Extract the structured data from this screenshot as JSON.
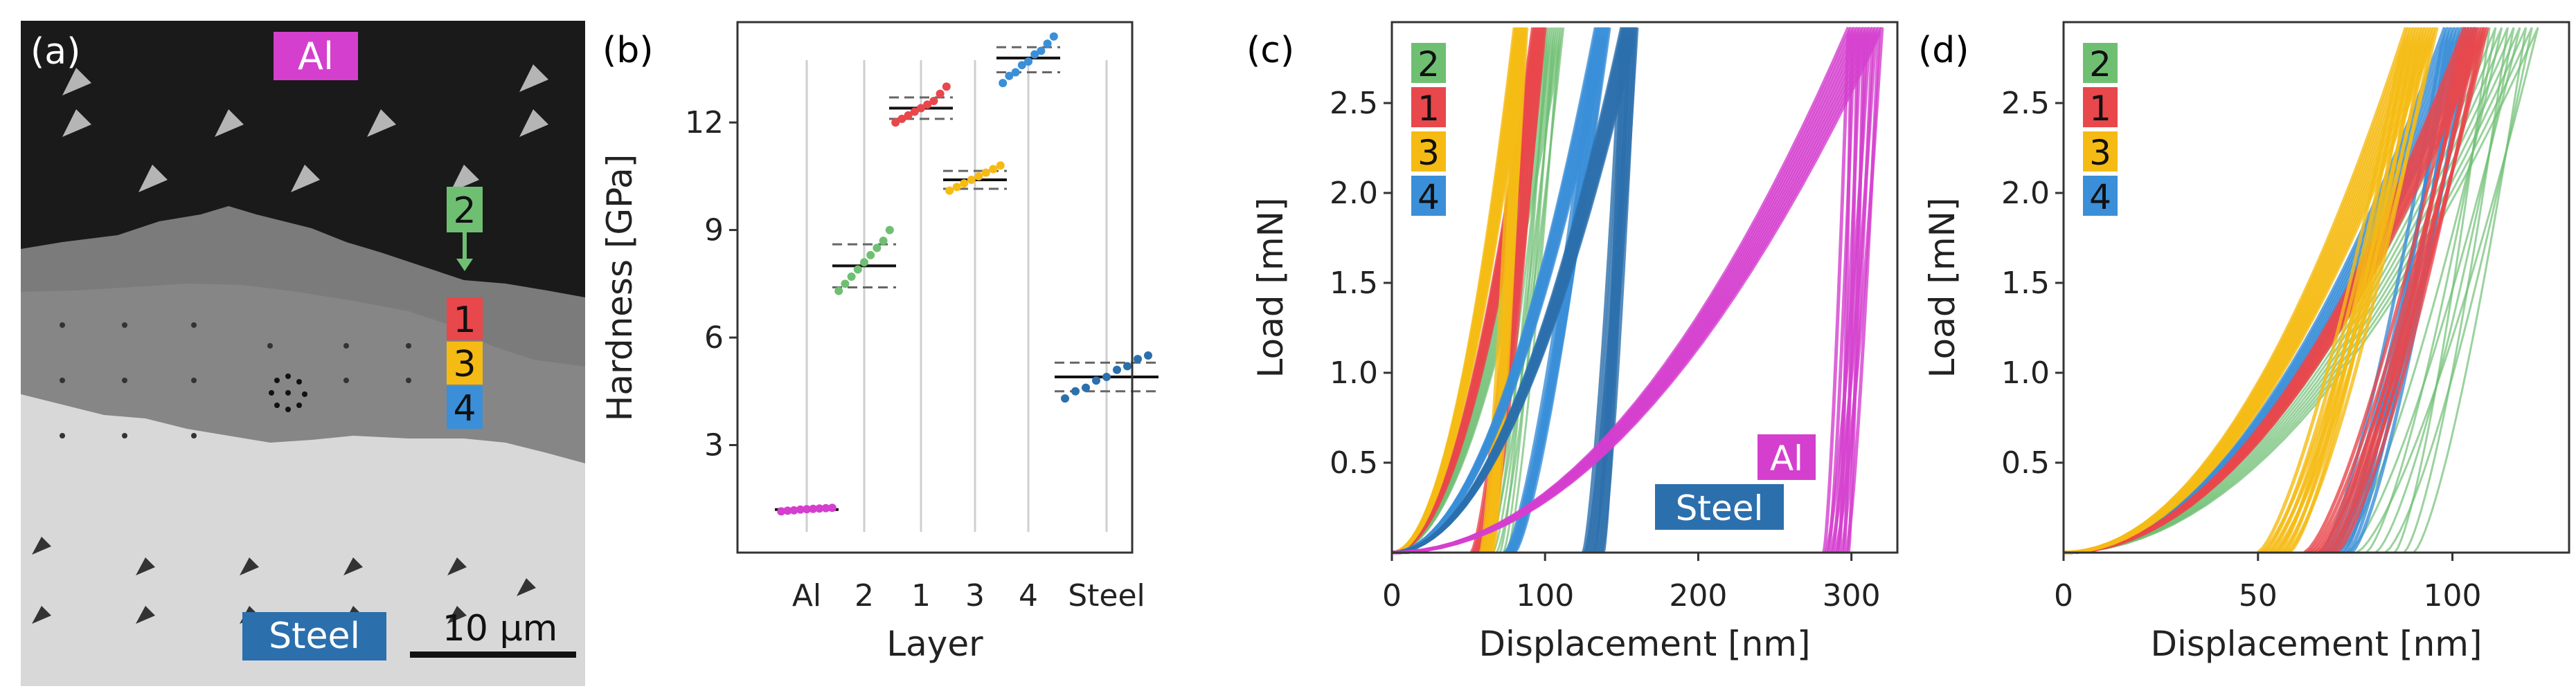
{
  "panels": {
    "a": {
      "tag": "(a)",
      "label_top": "Al",
      "label_bottom": "Steel",
      "scale_bar": "10 μm",
      "layer_labels": [
        "2",
        "1",
        "3",
        "4"
      ]
    }
  },
  "colors": {
    "Al": "#d43fce",
    "2": "#6fbf73",
    "1": "#e8474c",
    "3": "#f5bb14",
    "4": "#3a8fd8",
    "Steel": "#2c6fad"
  },
  "chart_data": [
    {
      "id": "b",
      "tag": "(b)",
      "type": "scatter",
      "xlabel": "Layer",
      "ylabel": "Hardness [GPa]",
      "categories": [
        "Al",
        "2",
        "1",
        "3",
        "4",
        "Steel"
      ],
      "yticks": [
        3,
        6,
        9,
        12
      ],
      "ylim": [
        0,
        14.8
      ],
      "grid": "vertical lines at categories",
      "series": [
        {
          "name": "Al",
          "mean": 1.2,
          "band": [
            1.2,
            1.2
          ],
          "points": [
            1.15,
            1.17,
            1.18,
            1.2,
            1.21,
            1.22,
            1.23,
            1.24,
            1.25
          ]
        },
        {
          "name": "2",
          "mean": 8.0,
          "band": [
            7.4,
            8.6
          ],
          "points": [
            7.3,
            7.5,
            7.7,
            7.9,
            8.1,
            8.3,
            8.5,
            8.7,
            9.0
          ]
        },
        {
          "name": "1",
          "mean": 12.4,
          "band": [
            12.1,
            12.7
          ],
          "points": [
            12.0,
            12.1,
            12.2,
            12.3,
            12.4,
            12.5,
            12.6,
            12.8,
            13.0
          ]
        },
        {
          "name": "3",
          "mean": 10.4,
          "band": [
            10.15,
            10.65
          ],
          "points": [
            10.1,
            10.2,
            10.3,
            10.4,
            10.5,
            10.6,
            10.7,
            10.8
          ]
        },
        {
          "name": "4",
          "mean": 13.8,
          "band": [
            13.4,
            14.1
          ],
          "points": [
            13.1,
            13.3,
            13.4,
            13.6,
            13.7,
            13.9,
            14.0,
            14.2,
            14.4
          ]
        },
        {
          "name": "Steel",
          "mean": 4.9,
          "band": [
            4.5,
            5.3
          ],
          "points": [
            4.3,
            4.5,
            4.6,
            4.8,
            4.9,
            5.1,
            5.2,
            5.4,
            5.5
          ]
        }
      ]
    },
    {
      "id": "c",
      "tag": "(c)",
      "type": "line",
      "xlabel": "Displacement [nm]",
      "ylabel": "Load [mN]",
      "xlim": [
        0,
        330
      ],
      "ylim": [
        0,
        2.95
      ],
      "xticks": [
        0,
        100,
        200,
        300
      ],
      "yticks": [
        0.5,
        1.0,
        1.5,
        2.0,
        2.5
      ],
      "legend": [
        "2",
        "1",
        "3",
        "4"
      ],
      "annotations": [
        "Al",
        "Steel"
      ],
      "series": [
        {
          "name": "2",
          "curves": 10,
          "hmax": [
            100,
            112
          ],
          "hf": [
            55,
            75
          ]
        },
        {
          "name": "1",
          "curves": 10,
          "hmax": [
            92,
            100
          ],
          "hf": [
            52,
            62
          ]
        },
        {
          "name": "3",
          "curves": 10,
          "hmax": [
            80,
            88
          ],
          "hf": [
            58,
            66
          ]
        },
        {
          "name": "4",
          "curves": 10,
          "hmax": [
            133,
            142
          ],
          "hf": [
            74,
            80
          ]
        },
        {
          "name": "Steel",
          "curves": 12,
          "hmax": [
            150,
            160
          ],
          "hf": [
            125,
            138
          ]
        },
        {
          "name": "Al",
          "curves": 12,
          "hmax": [
            298,
            320
          ],
          "hf": [
            282,
            298
          ]
        }
      ]
    },
    {
      "id": "d",
      "tag": "(d)",
      "type": "line",
      "xlabel": "Displacement [nm]",
      "ylabel": "Load [mN]",
      "xlim": [
        0,
        130
      ],
      "ylim": [
        0,
        2.95
      ],
      "xticks": [
        0,
        50,
        100
      ],
      "yticks": [
        0.5,
        1.0,
        1.5,
        2.0,
        2.5
      ],
      "legend": [
        "2",
        "1",
        "3",
        "4"
      ],
      "series": [
        {
          "name": "2",
          "curves": 10,
          "hmax": [
            108,
            122
          ],
          "hf": [
            68,
            90
          ]
        },
        {
          "name": "4",
          "curves": 10,
          "hmax": [
            98,
            106
          ],
          "hf": [
            66,
            74
          ]
        },
        {
          "name": "1",
          "curves": 10,
          "hmax": [
            103,
            109
          ],
          "hf": [
            62,
            70
          ]
        },
        {
          "name": "3",
          "curves": 12,
          "hmax": [
            88,
            96
          ],
          "hf": [
            50,
            58
          ]
        }
      ]
    }
  ]
}
